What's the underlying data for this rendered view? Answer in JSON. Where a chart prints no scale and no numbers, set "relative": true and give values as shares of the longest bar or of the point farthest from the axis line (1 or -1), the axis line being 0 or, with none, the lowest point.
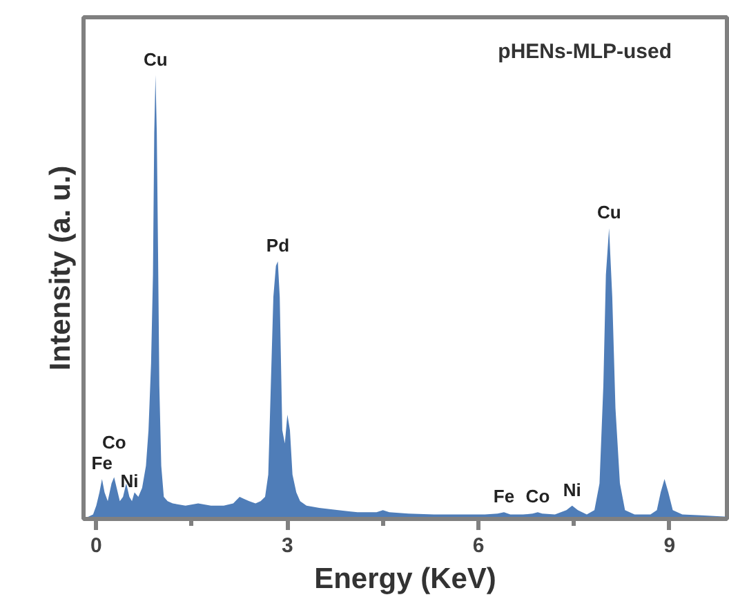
{
  "chart_data": {
    "type": "area",
    "relative": true,
    "xlabel": "Energy (KeV)",
    "ylabel": "Intensity (a. u.)",
    "xlim": [
      -0.2,
      9.9
    ],
    "xticks": [
      0,
      3,
      6,
      9
    ],
    "tick_labels": "x",
    "grid": false,
    "color": "#4f7db8",
    "x": [
      -0.2,
      -0.05,
      0.0,
      0.05,
      0.09,
      0.13,
      0.18,
      0.24,
      0.28,
      0.32,
      0.37,
      0.42,
      0.47,
      0.52,
      0.56,
      0.6,
      0.66,
      0.72,
      0.78,
      0.82,
      0.86,
      0.89,
      0.91,
      0.93,
      0.95,
      0.97,
      0.99,
      1.02,
      1.06,
      1.12,
      1.2,
      1.4,
      1.6,
      1.8,
      2.0,
      2.15,
      2.25,
      2.32,
      2.4,
      2.5,
      2.58,
      2.65,
      2.7,
      2.74,
      2.78,
      2.82,
      2.85,
      2.88,
      2.92,
      2.96,
      3.0,
      3.04,
      3.08,
      3.14,
      3.2,
      3.3,
      3.5,
      3.8,
      4.1,
      4.4,
      4.5,
      4.6,
      4.9,
      5.3,
      5.7,
      6.1,
      6.3,
      6.4,
      6.5,
      6.7,
      6.85,
      6.93,
      7.0,
      7.2,
      7.38,
      7.47,
      7.56,
      7.7,
      7.82,
      7.9,
      7.96,
      8.0,
      8.05,
      8.1,
      8.15,
      8.22,
      8.3,
      8.45,
      8.7,
      8.8,
      8.86,
      8.92,
      8.98,
      9.05,
      9.2,
      9.5,
      9.9
    ],
    "values": [
      0.0,
      0.01,
      0.03,
      0.06,
      0.09,
      0.06,
      0.04,
      0.08,
      0.094,
      0.07,
      0.04,
      0.05,
      0.08,
      0.05,
      0.04,
      0.06,
      0.05,
      0.07,
      0.12,
      0.2,
      0.35,
      0.55,
      0.87,
      1.0,
      0.87,
      0.6,
      0.3,
      0.12,
      0.05,
      0.04,
      0.035,
      0.03,
      0.035,
      0.03,
      0.03,
      0.035,
      0.05,
      0.045,
      0.04,
      0.035,
      0.04,
      0.05,
      0.1,
      0.3,
      0.5,
      0.57,
      0.58,
      0.5,
      0.2,
      0.17,
      0.235,
      0.2,
      0.1,
      0.06,
      0.04,
      0.03,
      0.025,
      0.02,
      0.015,
      0.015,
      0.02,
      0.015,
      0.012,
      0.01,
      0.01,
      0.01,
      0.012,
      0.015,
      0.01,
      0.01,
      0.012,
      0.015,
      0.012,
      0.01,
      0.02,
      0.03,
      0.02,
      0.01,
      0.02,
      0.08,
      0.3,
      0.55,
      0.655,
      0.5,
      0.25,
      0.08,
      0.02,
      0.01,
      0.01,
      0.02,
      0.06,
      0.09,
      0.06,
      0.02,
      0.01,
      0.008,
      0.005
    ],
    "annotations": [
      {
        "text": "Cu",
        "x": 0.93,
        "y": 1.0
      },
      {
        "text": "Pd",
        "x": 2.85,
        "y": 0.58
      },
      {
        "text": "Cu",
        "x": 8.05,
        "y": 0.655
      },
      {
        "text": "Fe",
        "x": 0.09,
        "y": 0.09
      },
      {
        "text": "Ni",
        "x": 0.52,
        "y": 0.05
      },
      {
        "text": "Co",
        "x": 0.28,
        "y": 0.094
      },
      {
        "text": "Fe",
        "x": 6.4,
        "y": 0.015
      },
      {
        "text": "Co",
        "x": 6.93,
        "y": 0.015
      },
      {
        "text": "Ni",
        "x": 7.47,
        "y": 0.03
      },
      "pHENs-MLP-used"
    ]
  }
}
